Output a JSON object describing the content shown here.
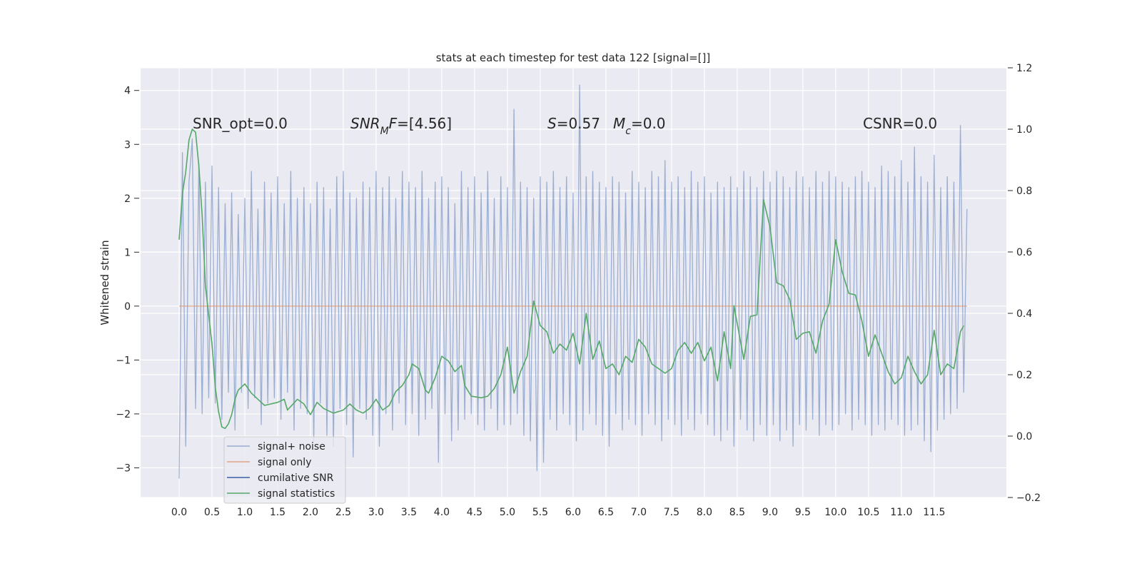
{
  "chart_data": {
    "type": "line",
    "title": "stats at each timestep for test data 122 [signal=[]]",
    "ylabel": "Whitened strain",
    "xlim": [
      -0.587,
      12.6
    ],
    "ylim": [
      -3.55,
      4.42
    ],
    "y2lim": [
      -0.2,
      1.2
    ],
    "grid": true,
    "legend_loc": "lower left",
    "xticks": [
      {
        "value": 0,
        "label": "0.0"
      },
      0.5,
      {
        "value": 1,
        "label": "1.0"
      },
      1.5,
      {
        "value": 2,
        "label": "2.0"
      },
      2.5,
      {
        "value": 3,
        "label": "3.0"
      },
      3.5,
      {
        "value": 4,
        "label": "4.0"
      },
      4.5,
      {
        "value": 5,
        "label": "5.0"
      },
      5.5,
      {
        "value": 6,
        "label": "6.0"
      },
      6.5,
      {
        "value": 7,
        "label": "7.0"
      },
      7.5,
      {
        "value": 8,
        "label": "8.0"
      },
      8.5,
      {
        "value": 9,
        "label": "9.0"
      },
      9.5,
      {
        "value": 10,
        "label": "10.0"
      },
      10.5,
      {
        "value": 11,
        "label": "11.0"
      },
      11.5
    ],
    "yticks": [
      {
        "value": -3,
        "label": "−3"
      },
      {
        "value": -2,
        "label": "−2"
      },
      {
        "value": -1,
        "label": "−1"
      },
      0,
      1,
      2,
      3,
      4
    ],
    "y2ticks": [
      {
        "value": -0.2,
        "label": "−0.2"
      },
      {
        "value": 0,
        "label": "0.0"
      },
      0.2,
      0.4,
      0.6,
      0.8,
      {
        "value": 1,
        "label": "1.0"
      },
      1.2
    ],
    "annotations": [
      [
        {
          "text": "SNR_opt=0.0"
        }
      ],
      [
        {
          "text": "SNR",
          "italic": true
        },
        {
          "text": "M",
          "italic": true,
          "sub": true
        },
        {
          "text": "F",
          "italic": true
        },
        {
          "text": "=[4.56]"
        }
      ],
      [
        {
          "text": "S",
          "italic": true
        },
        {
          "text": "=0.57"
        }
      ],
      [
        {
          "text": "M",
          "italic": true
        },
        {
          "text": "c",
          "italic": true,
          "sub": true
        },
        {
          "text": "=0.0"
        }
      ],
      [
        {
          "text": "CSNR=0.0"
        }
      ]
    ],
    "series": [
      {
        "name": "signal+ noise",
        "color": "#4c72b0",
        "opacity": 0.5,
        "x": [
          0,
          0.05,
          0.1,
          0.15,
          0.2,
          0.25,
          0.3,
          0.35,
          0.4,
          0.45,
          0.5,
          0.55,
          0.6,
          0.65,
          0.7,
          0.75,
          0.8,
          0.85,
          0.9,
          0.95,
          1,
          1.05,
          1.1,
          1.15,
          1.2,
          1.25,
          1.3,
          1.35,
          1.4,
          1.45,
          1.5,
          1.55,
          1.6,
          1.65,
          1.7,
          1.75,
          1.8,
          1.85,
          1.9,
          1.95,
          2,
          2.05,
          2.1,
          2.15,
          2.2,
          2.25,
          2.3,
          2.35,
          2.4,
          2.45,
          2.5,
          2.55,
          2.6,
          2.65,
          2.7,
          2.75,
          2.8,
          2.85,
          2.9,
          2.95,
          3,
          3.05,
          3.1,
          3.15,
          3.2,
          3.25,
          3.3,
          3.35,
          3.4,
          3.45,
          3.5,
          3.55,
          3.6,
          3.65,
          3.7,
          3.75,
          3.8,
          3.85,
          3.9,
          3.95,
          4,
          4.05,
          4.1,
          4.15,
          4.2,
          4.25,
          4.3,
          4.35,
          4.4,
          4.45,
          4.5,
          4.55,
          4.6,
          4.65,
          4.7,
          4.75,
          4.8,
          4.85,
          4.9,
          4.95,
          5,
          5.05,
          5.1,
          5.15,
          5.2,
          5.25,
          5.3,
          5.35,
          5.4,
          5.45,
          5.5,
          5.55,
          5.6,
          5.65,
          5.7,
          5.75,
          5.8,
          5.85,
          5.9,
          5.95,
          6,
          6.05,
          6.1,
          6.15,
          6.2,
          6.25,
          6.3,
          6.35,
          6.4,
          6.45,
          6.5,
          6.55,
          6.6,
          6.65,
          6.7,
          6.75,
          6.8,
          6.85,
          6.9,
          6.95,
          7,
          7.05,
          7.1,
          7.15,
          7.2,
          7.25,
          7.3,
          7.35,
          7.4,
          7.45,
          7.5,
          7.55,
          7.6,
          7.65,
          7.7,
          7.75,
          7.8,
          7.85,
          7.9,
          7.95,
          8,
          8.05,
          8.1,
          8.15,
          8.2,
          8.25,
          8.3,
          8.35,
          8.4,
          8.45,
          8.5,
          8.55,
          8.6,
          8.65,
          8.7,
          8.75,
          8.8,
          8.85,
          8.9,
          8.95,
          9,
          9.05,
          9.1,
          9.15,
          9.2,
          9.25,
          9.3,
          9.35,
          9.4,
          9.45,
          9.5,
          9.55,
          9.6,
          9.65,
          9.7,
          9.75,
          9.8,
          9.85,
          9.9,
          9.95,
          10,
          10.05,
          10.1,
          10.15,
          10.2,
          10.25,
          10.3,
          10.35,
          10.4,
          10.45,
          10.5,
          10.55,
          10.6,
          10.65,
          10.7,
          10.75,
          10.8,
          10.85,
          10.9,
          10.95,
          11,
          11.05,
          11.1,
          11.15,
          11.2,
          11.25,
          11.3,
          11.35,
          11.4,
          11.45,
          11.5,
          11.55,
          11.6,
          11.65,
          11.7,
          11.75,
          11.8,
          11.85,
          11.9,
          11.95,
          12
        ],
        "values": [
          -3.2,
          2.85,
          -2.6,
          2.3,
          3.1,
          -1.9,
          2.65,
          -2.0,
          2.3,
          -1.7,
          2.6,
          -1.8,
          2.2,
          -2.1,
          1.9,
          -1.6,
          2.1,
          -2.3,
          1.7,
          -1.6,
          2.0,
          -1.9,
          2.5,
          -1.7,
          1.8,
          -2.2,
          2.3,
          -1.8,
          2.1,
          -1.7,
          2.4,
          -2.1,
          1.9,
          -1.6,
          2.5,
          -2.3,
          2.0,
          -1.9,
          2.2,
          -2.0,
          1.9,
          -2.5,
          2.3,
          -1.8,
          2.2,
          -2.4,
          1.8,
          -2.6,
          2.4,
          -1.9,
          2.5,
          -2.2,
          2.1,
          -2.8,
          2.0,
          -1.9,
          2.3,
          -2.1,
          2.2,
          -2.4,
          2.5,
          -2.6,
          2.2,
          -2.0,
          2.4,
          -2.3,
          2.0,
          -1.8,
          2.5,
          -2.2,
          2.3,
          -2.0,
          2.2,
          -2.4,
          2.5,
          -2.1,
          2.0,
          -1.9,
          2.3,
          -2.9,
          2.4,
          -2.0,
          2.2,
          -2.5,
          1.9,
          -2.3,
          2.5,
          -2.1,
          2.2,
          -2.0,
          2.4,
          -2.2,
          2.1,
          -2.3,
          2.5,
          -1.9,
          2.0,
          -2.3,
          2.4,
          -2.2,
          2.2,
          -2.2,
          3.65,
          -2.0,
          2.3,
          -2.4,
          2.2,
          -2.5,
          2.0,
          -3.05,
          2.4,
          -2.9,
          2.3,
          -2.1,
          2.5,
          -2.3,
          2.2,
          -2.0,
          2.4,
          -2.2,
          2.1,
          -2.5,
          4.1,
          -2.3,
          2.4,
          -2.0,
          2.5,
          -2.2,
          2.3,
          -2.4,
          2.2,
          -2.6,
          2.4,
          -2.0,
          2.3,
          -2.3,
          2.1,
          -2.1,
          2.5,
          -2.2,
          2.3,
          -2.4,
          2.2,
          -2.0,
          2.5,
          -2.2,
          2.4,
          -2.5,
          2.7,
          -2.1,
          2.3,
          -2.2,
          2.4,
          -2.4,
          2.2,
          -2.1,
          2.5,
          -2.3,
          2.3,
          -2.0,
          2.4,
          -2.2,
          2.1,
          -2.4,
          2.3,
          -2.5,
          2.2,
          -2.3,
          2.4,
          -2.6,
          2.2,
          -2.1,
          2.5,
          -2.3,
          2.4,
          -2.5,
          2.2,
          -2.2,
          2.5,
          -2.4,
          2.3,
          -2.2,
          2.5,
          -2.5,
          2.4,
          -2.3,
          2.2,
          -2.6,
          2.5,
          -2.2,
          2.4,
          -2.3,
          2.2,
          -2.1,
          2.5,
          -2.4,
          2.3,
          -2.2,
          2.5,
          -2.3,
          2.4,
          -2.2,
          2.3,
          -2.0,
          2.2,
          -2.3,
          2.4,
          -2.1,
          2.5,
          -2.2,
          2.3,
          -2.4,
          2.2,
          -2.2,
          2.6,
          -2.3,
          2.5,
          -2.1,
          2.4,
          -2.2,
          2.7,
          -2.4,
          2.3,
          -2.3,
          2.95,
          -2.2,
          2.4,
          -2.5,
          2.3,
          -2.7,
          2.8,
          -2.3,
          2.2,
          -2.1,
          2.4,
          -2.0,
          2.3,
          -1.9,
          3.35,
          -1.6,
          1.8
        ]
      },
      {
        "name": "signal only",
        "color": "#dd8452",
        "opacity": 0.7,
        "x": [
          0,
          12
        ],
        "values": [
          0,
          0
        ]
      },
      {
        "name": "cumilative SNR",
        "color": "#3a5ea8",
        "opacity": 1,
        "x": [],
        "values": []
      },
      {
        "name": "signal statistics",
        "color": "#55a868",
        "opacity": 1,
        "axis": "y2",
        "x": [
          0,
          0.05,
          0.1,
          0.15,
          0.2,
          0.25,
          0.3,
          0.35,
          0.4,
          0.5,
          0.55,
          0.6,
          0.65,
          0.7,
          0.75,
          0.8,
          0.85,
          0.9,
          1.0,
          1.1,
          1.2,
          1.3,
          1.4,
          1.5,
          1.6,
          1.65,
          1.8,
          1.9,
          2.0,
          2.1,
          2.2,
          2.35,
          2.5,
          2.6,
          2.7,
          2.8,
          2.9,
          3.0,
          3.1,
          3.2,
          3.3,
          3.4,
          3.5,
          3.55,
          3.65,
          3.75,
          3.8,
          3.9,
          4.0,
          4.1,
          4.2,
          4.3,
          4.35,
          4.45,
          4.6,
          4.7,
          4.8,
          4.9,
          5.0,
          5.1,
          5.2,
          5.3,
          5.4,
          5.5,
          5.6,
          5.7,
          5.8,
          5.9,
          6.0,
          6.1,
          6.2,
          6.3,
          6.4,
          6.5,
          6.6,
          6.7,
          6.8,
          6.9,
          7.0,
          7.1,
          7.2,
          7.3,
          7.4,
          7.5,
          7.6,
          7.7,
          7.8,
          7.9,
          8.0,
          8.1,
          8.2,
          8.3,
          8.4,
          8.45,
          8.6,
          8.7,
          8.8,
          8.9,
          9.0,
          9.1,
          9.2,
          9.3,
          9.4,
          9.5,
          9.6,
          9.7,
          9.8,
          9.9,
          10.0,
          10.1,
          10.2,
          10.3,
          10.4,
          10.5,
          10.6,
          10.7,
          10.8,
          10.9,
          11.0,
          11.1,
          11.2,
          11.3,
          11.4,
          11.5,
          11.6,
          11.7,
          11.8,
          11.9,
          11.95
        ],
        "values": [
          0.64,
          0.79,
          0.86,
          0.965,
          1.0,
          0.99,
          0.88,
          0.72,
          0.49,
          0.3,
          0.16,
          0.08,
          0.03,
          0.025,
          0.04,
          0.07,
          0.12,
          0.15,
          0.17,
          0.14,
          0.12,
          0.1,
          0.105,
          0.11,
          0.12,
          0.085,
          0.12,
          0.105,
          0.07,
          0.11,
          0.09,
          0.075,
          0.085,
          0.105,
          0.085,
          0.075,
          0.09,
          0.12,
          0.085,
          0.1,
          0.145,
          0.165,
          0.2,
          0.235,
          0.22,
          0.15,
          0.14,
          0.19,
          0.26,
          0.245,
          0.21,
          0.23,
          0.165,
          0.13,
          0.125,
          0.13,
          0.155,
          0.2,
          0.29,
          0.14,
          0.21,
          0.26,
          0.44,
          0.36,
          0.34,
          0.27,
          0.3,
          0.28,
          0.335,
          0.235,
          0.4,
          0.25,
          0.31,
          0.22,
          0.235,
          0.2,
          0.26,
          0.24,
          0.315,
          0.29,
          0.235,
          0.22,
          0.205,
          0.22,
          0.28,
          0.305,
          0.27,
          0.305,
          0.245,
          0.29,
          0.18,
          0.34,
          0.22,
          0.425,
          0.25,
          0.39,
          0.395,
          0.77,
          0.68,
          0.5,
          0.49,
          0.445,
          0.315,
          0.335,
          0.34,
          0.27,
          0.375,
          0.43,
          0.64,
          0.535,
          0.465,
          0.46,
          0.375,
          0.26,
          0.33,
          0.27,
          0.21,
          0.17,
          0.19,
          0.26,
          0.21,
          0.17,
          0.2,
          0.345,
          0.2,
          0.235,
          0.22,
          0.34,
          0.36
        ]
      }
    ]
  }
}
